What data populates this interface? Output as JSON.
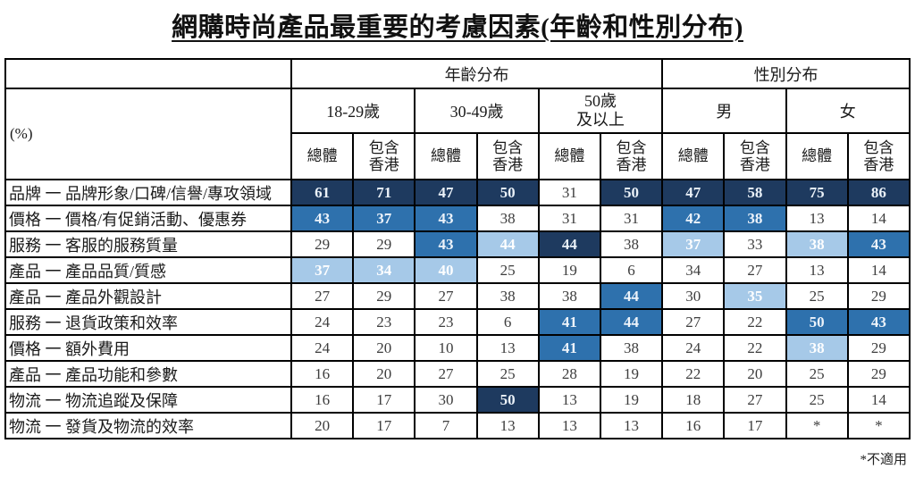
{
  "title": "網購時尚產品最重要的考慮因素(年齡和性別分布)",
  "footnote": "*不適用",
  "colors": {
    "highlight_dark": "#1E3A5F",
    "highlight_medium": "#2E71AD",
    "highlight_light": "#A6C9E8",
    "border": "#000000",
    "highlight_text": "#EDF3FA",
    "normal_text": "#3D3D3D"
  },
  "tbl": {
    "unit": "(%)",
    "group_age": "年齡分布",
    "group_gender": "性別分布",
    "sub": [
      "18-29歲",
      "30-49歲",
      "50歲\n及以上",
      "男",
      "女"
    ],
    "measure_total": "總體",
    "measure_hk": "包含香港",
    "rows": [
      {
        "label": "品牌 一 品牌形象/口碑/信譽/專攻領域",
        "c": [
          [
            "61",
            "d"
          ],
          [
            "71",
            "d"
          ],
          [
            "47",
            "d"
          ],
          [
            "50",
            "d"
          ],
          [
            "31",
            "w"
          ],
          [
            "50",
            "d"
          ],
          [
            "47",
            "d"
          ],
          [
            "58",
            "d"
          ],
          [
            "75",
            "d"
          ],
          [
            "86",
            "d"
          ]
        ]
      },
      {
        "label": "價格 一 價格/有促銷活動、優惠券",
        "c": [
          [
            "43",
            "m"
          ],
          [
            "37",
            "m"
          ],
          [
            "43",
            "m"
          ],
          [
            "38",
            "w"
          ],
          [
            "31",
            "w"
          ],
          [
            "31",
            "w"
          ],
          [
            "42",
            "m"
          ],
          [
            "38",
            "m"
          ],
          [
            "13",
            "w"
          ],
          [
            "14",
            "w"
          ]
        ]
      },
      {
        "label": "服務 一 客服的服務質量",
        "c": [
          [
            "29",
            "w"
          ],
          [
            "29",
            "w"
          ],
          [
            "43",
            "m"
          ],
          [
            "44",
            "l"
          ],
          [
            "44",
            "d"
          ],
          [
            "38",
            "w"
          ],
          [
            "37",
            "l"
          ],
          [
            "33",
            "w"
          ],
          [
            "38",
            "l"
          ],
          [
            "43",
            "m"
          ]
        ]
      },
      {
        "label": "產品 一 產品品質/質感",
        "c": [
          [
            "37",
            "l"
          ],
          [
            "34",
            "l"
          ],
          [
            "40",
            "l"
          ],
          [
            "25",
            "w"
          ],
          [
            "19",
            "w"
          ],
          [
            "6",
            "w"
          ],
          [
            "34",
            "w"
          ],
          [
            "27",
            "w"
          ],
          [
            "13",
            "w"
          ],
          [
            "14",
            "w"
          ]
        ]
      },
      {
        "label": "產品 一 產品外觀設計",
        "c": [
          [
            "27",
            "w"
          ],
          [
            "29",
            "w"
          ],
          [
            "27",
            "w"
          ],
          [
            "38",
            "w"
          ],
          [
            "38",
            "w"
          ],
          [
            "44",
            "m"
          ],
          [
            "30",
            "w"
          ],
          [
            "35",
            "l"
          ],
          [
            "25",
            "w"
          ],
          [
            "29",
            "w"
          ]
        ]
      },
      {
        "label": "服務 一 退貨政策和效率",
        "c": [
          [
            "24",
            "w"
          ],
          [
            "23",
            "w"
          ],
          [
            "23",
            "w"
          ],
          [
            "6",
            "w"
          ],
          [
            "41",
            "m"
          ],
          [
            "44",
            "m"
          ],
          [
            "27",
            "w"
          ],
          [
            "22",
            "w"
          ],
          [
            "50",
            "m"
          ],
          [
            "43",
            "m"
          ]
        ]
      },
      {
        "label": "價格 一 額外費用",
        "c": [
          [
            "24",
            "w"
          ],
          [
            "20",
            "w"
          ],
          [
            "10",
            "w"
          ],
          [
            "13",
            "w"
          ],
          [
            "41",
            "m"
          ],
          [
            "38",
            "w"
          ],
          [
            "24",
            "w"
          ],
          [
            "22",
            "w"
          ],
          [
            "38",
            "l"
          ],
          [
            "29",
            "w"
          ]
        ]
      },
      {
        "label": "產品 一 產品功能和參數",
        "c": [
          [
            "16",
            "w"
          ],
          [
            "20",
            "w"
          ],
          [
            "27",
            "w"
          ],
          [
            "25",
            "w"
          ],
          [
            "28",
            "w"
          ],
          [
            "19",
            "w"
          ],
          [
            "22",
            "w"
          ],
          [
            "20",
            "w"
          ],
          [
            "25",
            "w"
          ],
          [
            "29",
            "w"
          ]
        ]
      },
      {
        "label": "物流 一 物流追蹤及保障",
        "c": [
          [
            "16",
            "w"
          ],
          [
            "17",
            "w"
          ],
          [
            "30",
            "w"
          ],
          [
            "50",
            "d"
          ],
          [
            "13",
            "w"
          ],
          [
            "19",
            "w"
          ],
          [
            "18",
            "w"
          ],
          [
            "27",
            "w"
          ],
          [
            "25",
            "w"
          ],
          [
            "14",
            "w"
          ]
        ]
      },
      {
        "label": "物流 一 發貨及物流的效率",
        "c": [
          [
            "20",
            "w"
          ],
          [
            "17",
            "w"
          ],
          [
            "7",
            "w"
          ],
          [
            "13",
            "w"
          ],
          [
            "13",
            "w"
          ],
          [
            "13",
            "w"
          ],
          [
            "16",
            "w"
          ],
          [
            "17",
            "w"
          ],
          [
            "*",
            "w"
          ],
          [
            "*",
            "w"
          ]
        ]
      }
    ]
  },
  "chart_data": {
    "type": "table",
    "title": "網購時尚產品最重要的考慮因素(年齡和性別分布)",
    "unit": "%",
    "column_groups": [
      {
        "label": "年齡分布",
        "span": 6
      },
      {
        "label": "性別分布",
        "span": 4
      }
    ],
    "columns": [
      "18-29歲 總體",
      "18-29歲 包含香港",
      "30-49歲 總體",
      "30-49歲 包含香港",
      "50歲及以上 總體",
      "50歲及以上 包含香港",
      "男 總體",
      "男 包含香港",
      "女 總體",
      "女 包含香港"
    ],
    "rows": [
      {
        "label": "品牌 一 品牌形象/口碑/信譽/專攻領域",
        "values": [
          61,
          71,
          47,
          50,
          31,
          50,
          47,
          58,
          75,
          86
        ]
      },
      {
        "label": "價格 一 價格/有促銷活動、優惠券",
        "values": [
          43,
          37,
          43,
          38,
          31,
          31,
          42,
          38,
          13,
          14
        ]
      },
      {
        "label": "服務 一 客服的服務質量",
        "values": [
          29,
          29,
          43,
          44,
          44,
          38,
          37,
          33,
          38,
          43
        ]
      },
      {
        "label": "產品 一 產品品質/質感",
        "values": [
          37,
          34,
          40,
          25,
          19,
          6,
          34,
          27,
          13,
          14
        ]
      },
      {
        "label": "產品 一 產品外觀設計",
        "values": [
          27,
          29,
          27,
          38,
          38,
          44,
          30,
          35,
          25,
          29
        ]
      },
      {
        "label": "服務 一 退貨政策和效率",
        "values": [
          24,
          23,
          23,
          6,
          41,
          44,
          27,
          22,
          50,
          43
        ]
      },
      {
        "label": "價格 一 額外費用",
        "values": [
          24,
          20,
          10,
          13,
          41,
          38,
          24,
          22,
          38,
          29
        ]
      },
      {
        "label": "產品 一 產品功能和參數",
        "values": [
          16,
          20,
          27,
          25,
          28,
          19,
          22,
          20,
          25,
          29
        ]
      },
      {
        "label": "物流 一 物流追蹤及保障",
        "values": [
          16,
          17,
          30,
          50,
          13,
          19,
          18,
          27,
          25,
          14
        ]
      },
      {
        "label": "物流 一 發貨及物流的效率",
        "values": [
          20,
          17,
          7,
          13,
          13,
          13,
          16,
          17,
          null,
          null
        ]
      }
    ],
    "highlight_levels": {
      "d": "dark #1E3A5F",
      "m": "medium #2E71AD",
      "l": "light #A6C9E8",
      "w": "none"
    },
    "footnote": "*不適用"
  }
}
